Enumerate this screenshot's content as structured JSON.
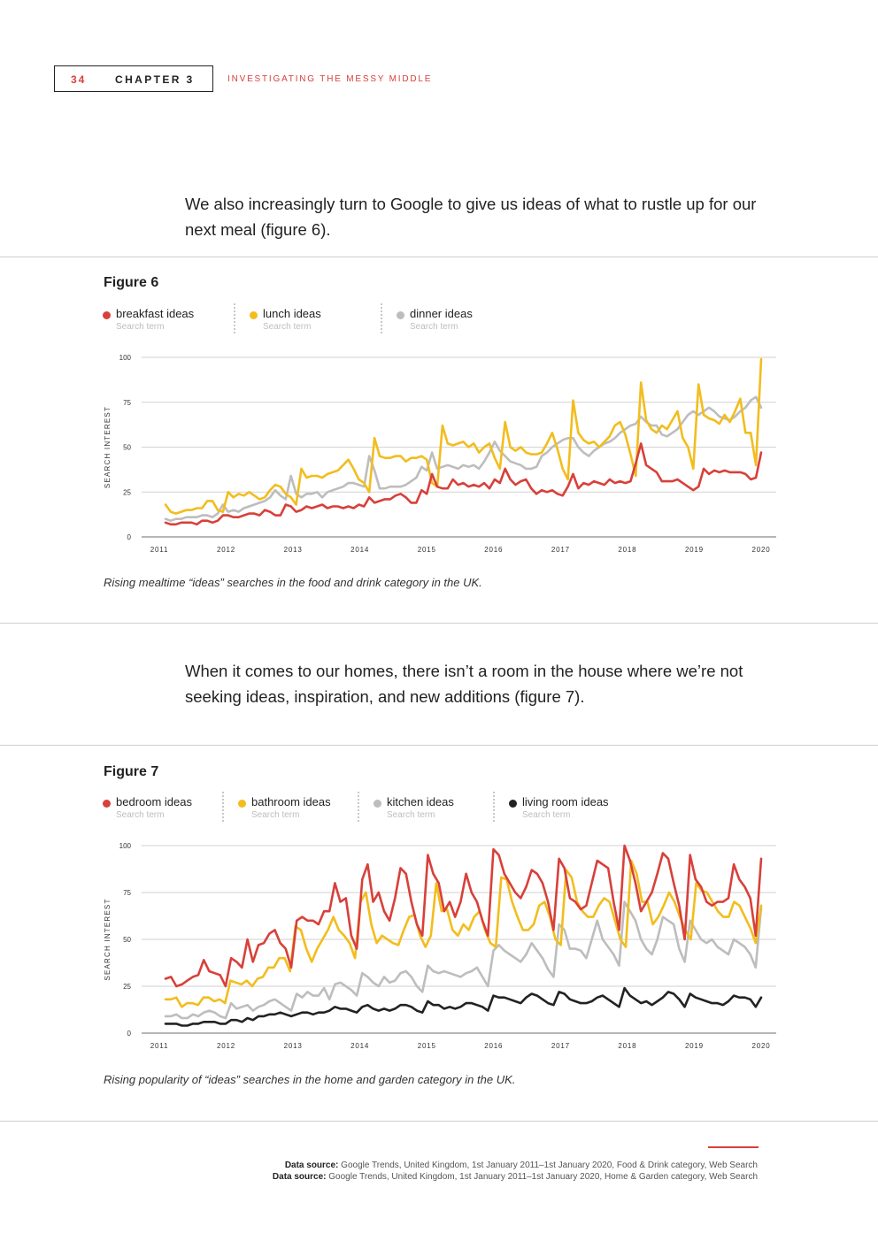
{
  "header": {
    "page_number": "34",
    "chapter": "CHAPTER 3",
    "section": "INVESTIGATING THE MESSY MIDDLE"
  },
  "intro_paragraph": "We also increasingly turn to Google to give us ideas of what to rustle up for our next meal (figure 6).",
  "figure6": {
    "title": "Figure 6",
    "caption": "Rising mealtime “ideas” searches in the food and drink category in the UK."
  },
  "middle_paragraph": "When it comes to our homes, there isn’t a room in the house where we’re not seeking ideas, inspiration, and new additions (figure 7).",
  "figure7": {
    "title": "Figure 7",
    "caption": "Rising popularity of “ideas” searches in the home and garden category in the UK."
  },
  "sources": [
    {
      "label": "Data source:",
      "text": " Google Trends, United Kingdom, 1st January 2011–1st January 2020, Food & Drink category, Web Search"
    },
    {
      "label": "Data source:",
      "text": " Google Trends, United Kingdom, 1st January 2011–1st January 2020, Home & Garden category, Web Search"
    }
  ],
  "chart_data": [
    {
      "type": "line",
      "title": "Figure 6",
      "xlabel": "",
      "ylabel": "SEARCH INTEREST",
      "ylim": [
        0,
        100
      ],
      "yticks": [
        0,
        25,
        50,
        75,
        100
      ],
      "xticks": [
        "2011",
        "2012",
        "2013",
        "2014",
        "2015",
        "2016",
        "2017",
        "2018",
        "2019",
        "2020"
      ],
      "x_start": 2011.0,
      "x_end": 2020.0,
      "legend_sub": "Search term",
      "series": [
        {
          "name": "breakfast ideas",
          "color": "#d8403a",
          "values": [
            8,
            7,
            7,
            8,
            8,
            8,
            7,
            9,
            9,
            8,
            9,
            12,
            12,
            11,
            11,
            12,
            13,
            13,
            12,
            15,
            14,
            12,
            12,
            18,
            17,
            14,
            15,
            17,
            16,
            17,
            18,
            16,
            17,
            17,
            16,
            17,
            16,
            18,
            17,
            22,
            19,
            20,
            21,
            21,
            23,
            24,
            22,
            19,
            19,
            26,
            24,
            35,
            28,
            27,
            27,
            32,
            29,
            30,
            28,
            29,
            28,
            30,
            27,
            32,
            30,
            38,
            32,
            29,
            31,
            32,
            27,
            24,
            26,
            25,
            26,
            24,
            23,
            28,
            35,
            27,
            30,
            29,
            31,
            30,
            29,
            32,
            30,
            31,
            30,
            31,
            41,
            52,
            40,
            38,
            36,
            31,
            31,
            31,
            32,
            30,
            28,
            26,
            28,
            38,
            35,
            37,
            36,
            37,
            36,
            36,
            36,
            35,
            32,
            33,
            47
          ]
        },
        {
          "name": "lunch ideas",
          "color": "#f2bd1d",
          "values": [
            18,
            14,
            13,
            14,
            15,
            15,
            16,
            16,
            20,
            20,
            15,
            14,
            25,
            22,
            24,
            23,
            25,
            23,
            21,
            22,
            26,
            29,
            28,
            24,
            22,
            18,
            38,
            33,
            34,
            34,
            33,
            35,
            36,
            37,
            40,
            43,
            38,
            32,
            30,
            25,
            55,
            45,
            44,
            44,
            45,
            45,
            42,
            44,
            44,
            45,
            43,
            30,
            28,
            62,
            52,
            51,
            52,
            53,
            50,
            52,
            47,
            50,
            52,
            44,
            38,
            64,
            50,
            48,
            50,
            47,
            46,
            46,
            47,
            52,
            58,
            49,
            38,
            32,
            76,
            58,
            54,
            52,
            53,
            50,
            53,
            56,
            62,
            64,
            57,
            46,
            34,
            86,
            65,
            60,
            58,
            62,
            60,
            65,
            70,
            55,
            50,
            38,
            85,
            68,
            66,
            65,
            63,
            68,
            64,
            70,
            77,
            58,
            58,
            40,
            99
          ]
        },
        {
          "name": "dinner ideas",
          "color": "#bdbdbd",
          "values": [
            10,
            9,
            10,
            10,
            11,
            11,
            11,
            12,
            12,
            11,
            13,
            18,
            14,
            15,
            14,
            16,
            17,
            18,
            19,
            20,
            22,
            26,
            23,
            21,
            34,
            24,
            22,
            24,
            24,
            25,
            22,
            25,
            26,
            27,
            28,
            30,
            30,
            29,
            28,
            45,
            37,
            27,
            27,
            28,
            28,
            28,
            29,
            31,
            33,
            39,
            37,
            47,
            38,
            39,
            40,
            39,
            38,
            40,
            39,
            40,
            38,
            42,
            47,
            53,
            48,
            45,
            42,
            41,
            40,
            38,
            38,
            39,
            45,
            47,
            50,
            52,
            54,
            55,
            55,
            50,
            47,
            45,
            48,
            50,
            52,
            53,
            55,
            58,
            60,
            62,
            63,
            67,
            64,
            62,
            62,
            57,
            56,
            58,
            60,
            64,
            68,
            70,
            68,
            70,
            72,
            70,
            67,
            66,
            65,
            67,
            70,
            72,
            76,
            78,
            72
          ]
        }
      ]
    },
    {
      "type": "line",
      "title": "Figure 7",
      "xlabel": "",
      "ylabel": "SEARCH INTEREST",
      "ylim": [
        0,
        100
      ],
      "yticks": [
        0,
        25,
        50,
        75,
        100
      ],
      "xticks": [
        "2011",
        "2012",
        "2013",
        "2014",
        "2015",
        "2016",
        "2017",
        "2018",
        "2019",
        "2020"
      ],
      "x_start": 2011.0,
      "x_end": 2020.0,
      "legend_sub": "Search term",
      "series": [
        {
          "name": "bedroom ideas",
          "color": "#d8403a",
          "values": [
            29,
            30,
            25,
            26,
            28,
            30,
            31,
            39,
            33,
            32,
            31,
            25,
            40,
            38,
            35,
            50,
            38,
            47,
            48,
            53,
            55,
            48,
            45,
            35,
            60,
            62,
            60,
            60,
            58,
            65,
            65,
            80,
            70,
            72,
            52,
            45,
            82,
            90,
            70,
            75,
            65,
            60,
            72,
            88,
            85,
            70,
            58,
            52,
            95,
            85,
            80,
            65,
            70,
            62,
            70,
            85,
            75,
            70,
            60,
            52,
            98,
            95,
            85,
            80,
            75,
            72,
            78,
            87,
            85,
            80,
            70,
            55,
            93,
            88,
            72,
            70,
            66,
            68,
            80,
            92,
            90,
            88,
            70,
            55,
            100,
            92,
            80,
            65,
            70,
            75,
            85,
            96,
            93,
            80,
            68,
            50,
            95,
            82,
            78,
            70,
            68,
            70,
            70,
            72,
            90,
            82,
            78,
            72,
            52,
            93
          ]
        },
        {
          "name": "bathroom ideas",
          "color": "#f2bd1d",
          "values": [
            18,
            18,
            19,
            14,
            16,
            16,
            15,
            19,
            19,
            17,
            18,
            16,
            28,
            27,
            26,
            28,
            25,
            29,
            30,
            35,
            35,
            40,
            40,
            33,
            57,
            55,
            45,
            38,
            45,
            50,
            55,
            62,
            55,
            52,
            48,
            40,
            70,
            75,
            58,
            48,
            52,
            50,
            48,
            47,
            55,
            62,
            63,
            52,
            46,
            52,
            80,
            65,
            66,
            55,
            52,
            58,
            55,
            62,
            65,
            55,
            48,
            46,
            83,
            82,
            70,
            62,
            55,
            55,
            58,
            68,
            70,
            62,
            50,
            47,
            87,
            83,
            70,
            65,
            62,
            62,
            68,
            72,
            70,
            60,
            50,
            46,
            92,
            85,
            70,
            70,
            58,
            62,
            68,
            75,
            70,
            62,
            55,
            50,
            80,
            76,
            75,
            70,
            65,
            62,
            62,
            70,
            68,
            62,
            56,
            48,
            68
          ]
        },
        {
          "name": "kitchen ideas",
          "color": "#bdbdbd",
          "values": [
            9,
            9,
            10,
            8,
            8,
            10,
            9,
            11,
            12,
            11,
            9,
            8,
            16,
            13,
            14,
            15,
            12,
            14,
            15,
            17,
            18,
            16,
            14,
            12,
            21,
            19,
            22,
            20,
            20,
            24,
            18,
            26,
            27,
            25,
            23,
            20,
            32,
            30,
            27,
            25,
            30,
            27,
            28,
            32,
            33,
            30,
            25,
            22,
            36,
            33,
            32,
            33,
            32,
            31,
            30,
            32,
            33,
            35,
            30,
            25,
            44,
            47,
            44,
            42,
            40,
            38,
            42,
            48,
            44,
            40,
            34,
            30,
            58,
            55,
            45,
            45,
            44,
            40,
            50,
            60,
            50,
            46,
            42,
            36,
            70,
            65,
            60,
            50,
            45,
            42,
            50,
            62,
            60,
            58,
            45,
            38,
            60,
            55,
            50,
            48,
            50,
            46,
            44,
            42,
            50,
            48,
            46,
            42,
            35,
            67
          ]
        },
        {
          "name": "living room ideas",
          "color": "#222222",
          "values": [
            5,
            5,
            5,
            4,
            4,
            5,
            5,
            6,
            6,
            6,
            5,
            5,
            7,
            7,
            6,
            8,
            7,
            9,
            9,
            10,
            10,
            11,
            10,
            9,
            10,
            11,
            11,
            10,
            11,
            11,
            12,
            14,
            13,
            13,
            12,
            11,
            14,
            15,
            13,
            12,
            13,
            12,
            13,
            15,
            15,
            14,
            12,
            11,
            17,
            15,
            15,
            13,
            14,
            13,
            14,
            16,
            16,
            15,
            14,
            12,
            20,
            19,
            19,
            18,
            17,
            16,
            19,
            21,
            20,
            18,
            16,
            15,
            22,
            21,
            18,
            17,
            16,
            16,
            17,
            19,
            20,
            18,
            16,
            14,
            24,
            20,
            18,
            16,
            17,
            15,
            17,
            19,
            22,
            21,
            18,
            14,
            21,
            19,
            18,
            17,
            16,
            16,
            15,
            17,
            20,
            19,
            19,
            18,
            14,
            19
          ]
        }
      ]
    }
  ]
}
